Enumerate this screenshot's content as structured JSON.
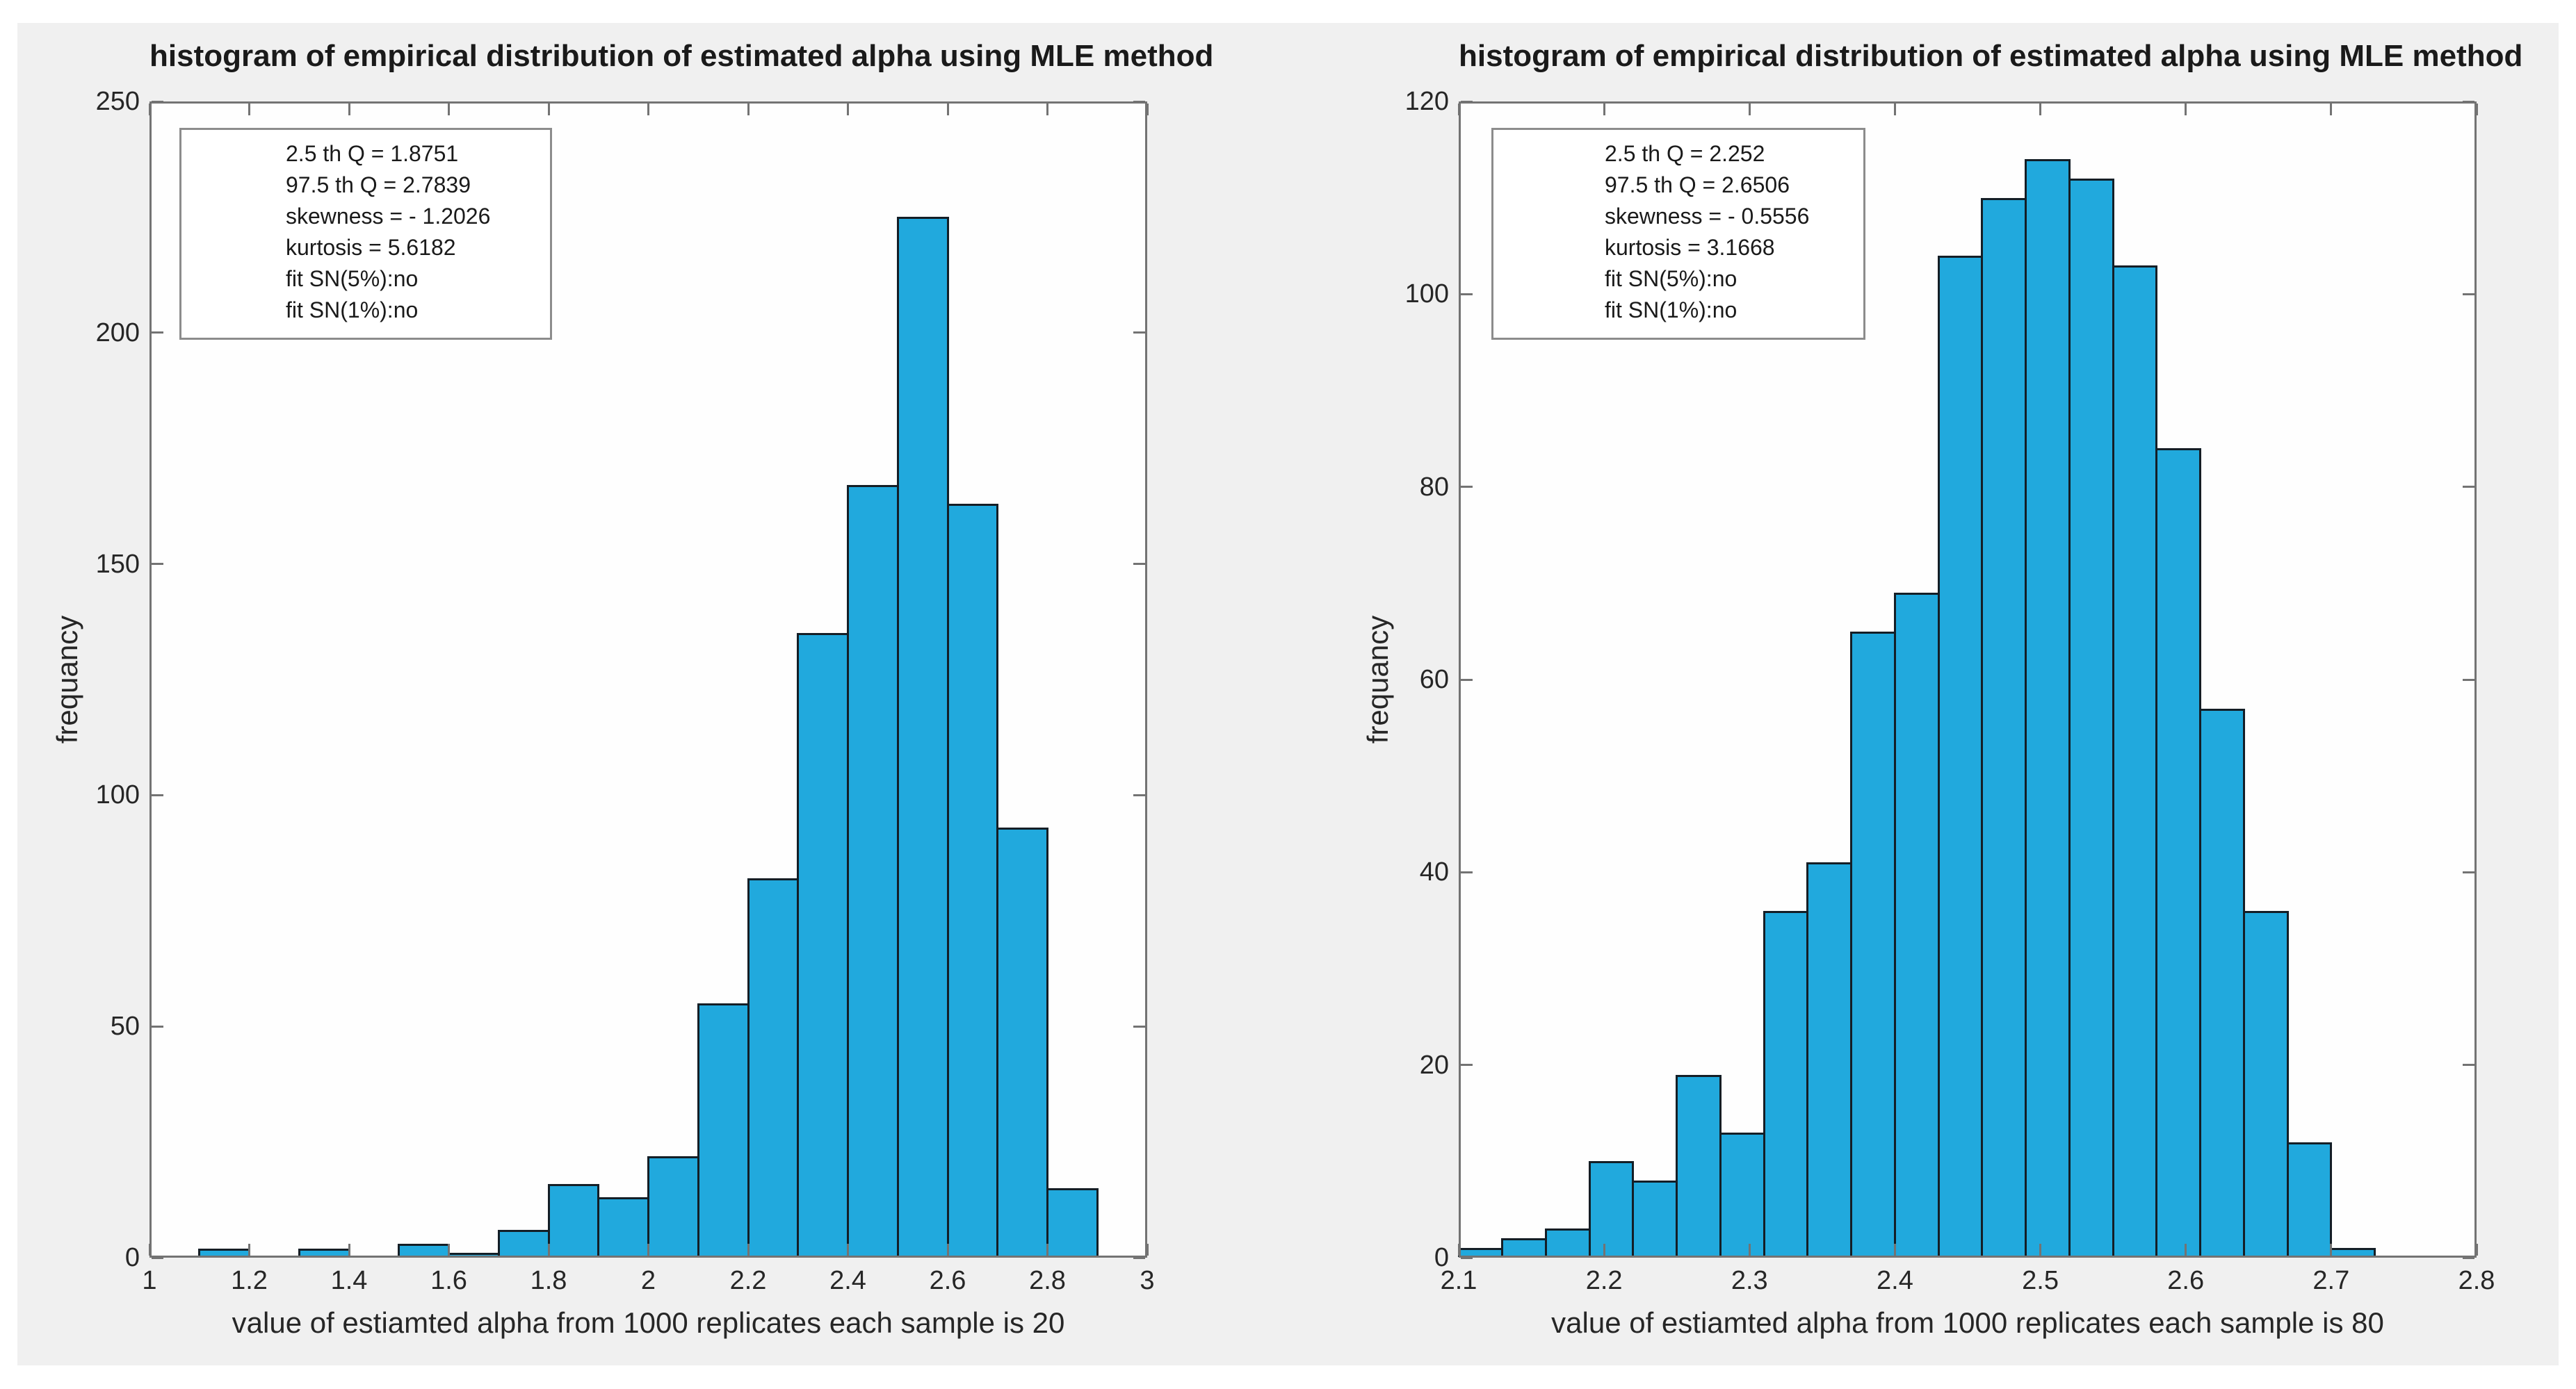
{
  "figure": {
    "bg_color": "#f0f0f0",
    "page_bg": "#ffffff",
    "bar_fill": "#21a9dd",
    "bar_edge": "#141e26",
    "axis_color": "#737373",
    "text_color": "#262626"
  },
  "chart_data": [
    {
      "type": "bar",
      "title": "histogram of empirical distribution of estimated alpha using MLE method",
      "xlabel": "value of estiamted alpha from 1000 replicates each sample is 20",
      "ylabel": "frequancy",
      "grid": false,
      "legend_position": "annotation box upper-left",
      "xlim": [
        1,
        3
      ],
      "ylim": [
        0,
        250
      ],
      "xtick_values": [
        1,
        1.2,
        1.4,
        1.6,
        1.8,
        2,
        2.2,
        2.4,
        2.6,
        2.8,
        3
      ],
      "xtick_labels": [
        "1",
        "1.2",
        "1.4",
        "1.6",
        "1.8",
        "2",
        "2.2",
        "2.4",
        "2.6",
        "2.8",
        "3"
      ],
      "ytick_values": [
        0,
        50,
        100,
        150,
        200,
        250
      ],
      "ytick_labels": [
        "0",
        "50",
        "100",
        "150",
        "200",
        "250"
      ],
      "bin_start": 1.1,
      "bin_width": 0.1,
      "values": [
        2,
        0,
        2,
        0,
        3,
        1,
        6,
        16,
        13,
        22,
        55,
        82,
        135,
        167,
        225,
        163,
        93,
        15
      ],
      "annotation_lines": [
        "2.5 th Q = 1.8751",
        "97.5 th Q = 2.7839",
        "skewness = - 1.2026",
        "kurtosis = 5.6182",
        "fit SN(5%):no",
        "fit SN(1%):no"
      ]
    },
    {
      "type": "bar",
      "title": "histogram of empirical distribution of estimated alpha using MLE method",
      "xlabel": "value of estiamted alpha from 1000 replicates each sample is 80",
      "ylabel": "frequancy",
      "grid": false,
      "legend_position": "annotation box upper-left",
      "xlim": [
        2.1,
        2.8
      ],
      "ylim": [
        0,
        120
      ],
      "xtick_values": [
        2.1,
        2.2,
        2.3,
        2.4,
        2.5,
        2.6,
        2.7,
        2.8
      ],
      "xtick_labels": [
        "2.1",
        "2.2",
        "2.3",
        "2.4",
        "2.5",
        "2.6",
        "2.7",
        "2.8"
      ],
      "ytick_values": [
        0,
        20,
        40,
        60,
        80,
        100,
        120
      ],
      "ytick_labels": [
        "0",
        "20",
        "40",
        "60",
        "80",
        "100",
        "120"
      ],
      "bin_start": 2.1,
      "bin_width": 0.03,
      "values": [
        1,
        2,
        3,
        10,
        8,
        19,
        13,
        36,
        41,
        65,
        69,
        104,
        110,
        114,
        112,
        103,
        84,
        57,
        36,
        12,
        1
      ],
      "annotation_lines": [
        "2.5 th Q = 2.252",
        "97.5 th Q = 2.6506",
        "skewness = - 0.5556",
        "kurtosis = 3.1668",
        "fit SN(5%):no",
        "fit SN(1%):no"
      ]
    }
  ]
}
